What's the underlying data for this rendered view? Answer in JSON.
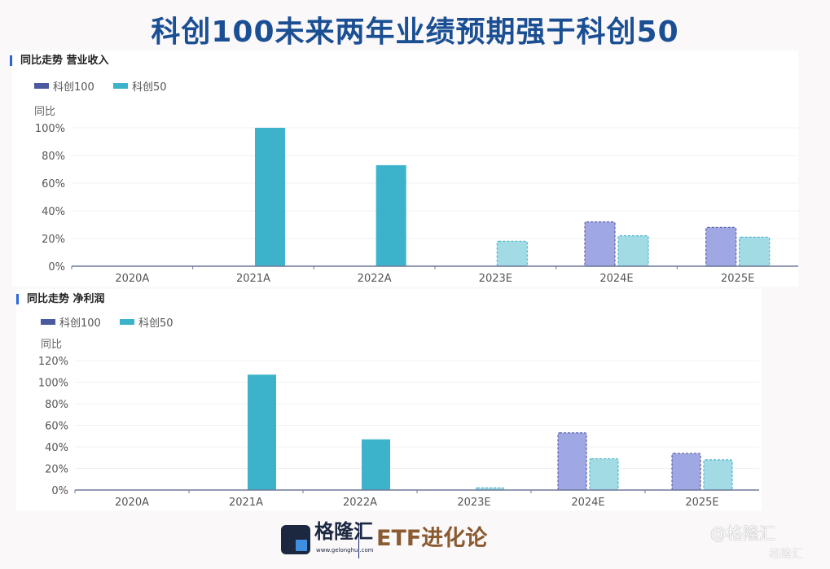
{
  "title": "科创100未来两年业绩预期强于科创50",
  "chart_data": [
    {
      "type": "bar",
      "title": "同比走势 营业收入",
      "ylabel": "同比",
      "categories": [
        "2020A",
        "2021A",
        "2022A",
        "2023E",
        "2024E",
        "2025E"
      ],
      "yticks": [
        "0%",
        "20%",
        "40%",
        "60%",
        "80%",
        "100%"
      ],
      "ylim": [
        0,
        100
      ],
      "series": [
        {
          "name": "科创100",
          "color": "#4b5aa0",
          "values": [
            null,
            null,
            null,
            null,
            32,
            28
          ]
        },
        {
          "name": "科创50",
          "color": "#3cb3cb",
          "values": [
            null,
            100,
            73,
            18,
            22,
            21
          ]
        }
      ],
      "estimate_categories": [
        "2023E",
        "2024E",
        "2025E"
      ],
      "legend": "top-left"
    },
    {
      "type": "bar",
      "title": "同比走势 净利润",
      "ylabel": "同比",
      "categories": [
        "2020A",
        "2021A",
        "2022A",
        "2023E",
        "2024E",
        "2025E"
      ],
      "yticks": [
        "0%",
        "20%",
        "40%",
        "60%",
        "80%",
        "100%",
        "120%"
      ],
      "ylim": [
        0,
        120
      ],
      "series": [
        {
          "name": "科创100",
          "color": "#4b5aa0",
          "values": [
            null,
            null,
            null,
            null,
            53,
            34
          ]
        },
        {
          "name": "科创50",
          "color": "#3cb3cb",
          "values": [
            null,
            107,
            47,
            2,
            29,
            28
          ]
        }
      ],
      "estimate_categories": [
        "2023E",
        "2024E",
        "2025E"
      ],
      "legend": "top-left"
    }
  ],
  "footer": {
    "logo_name": "格隆汇",
    "logo_url": "www.gelonghui.com",
    "brand": "ETF进化论",
    "watermark": "@格隆汇",
    "watermark2": "格隆汇"
  }
}
